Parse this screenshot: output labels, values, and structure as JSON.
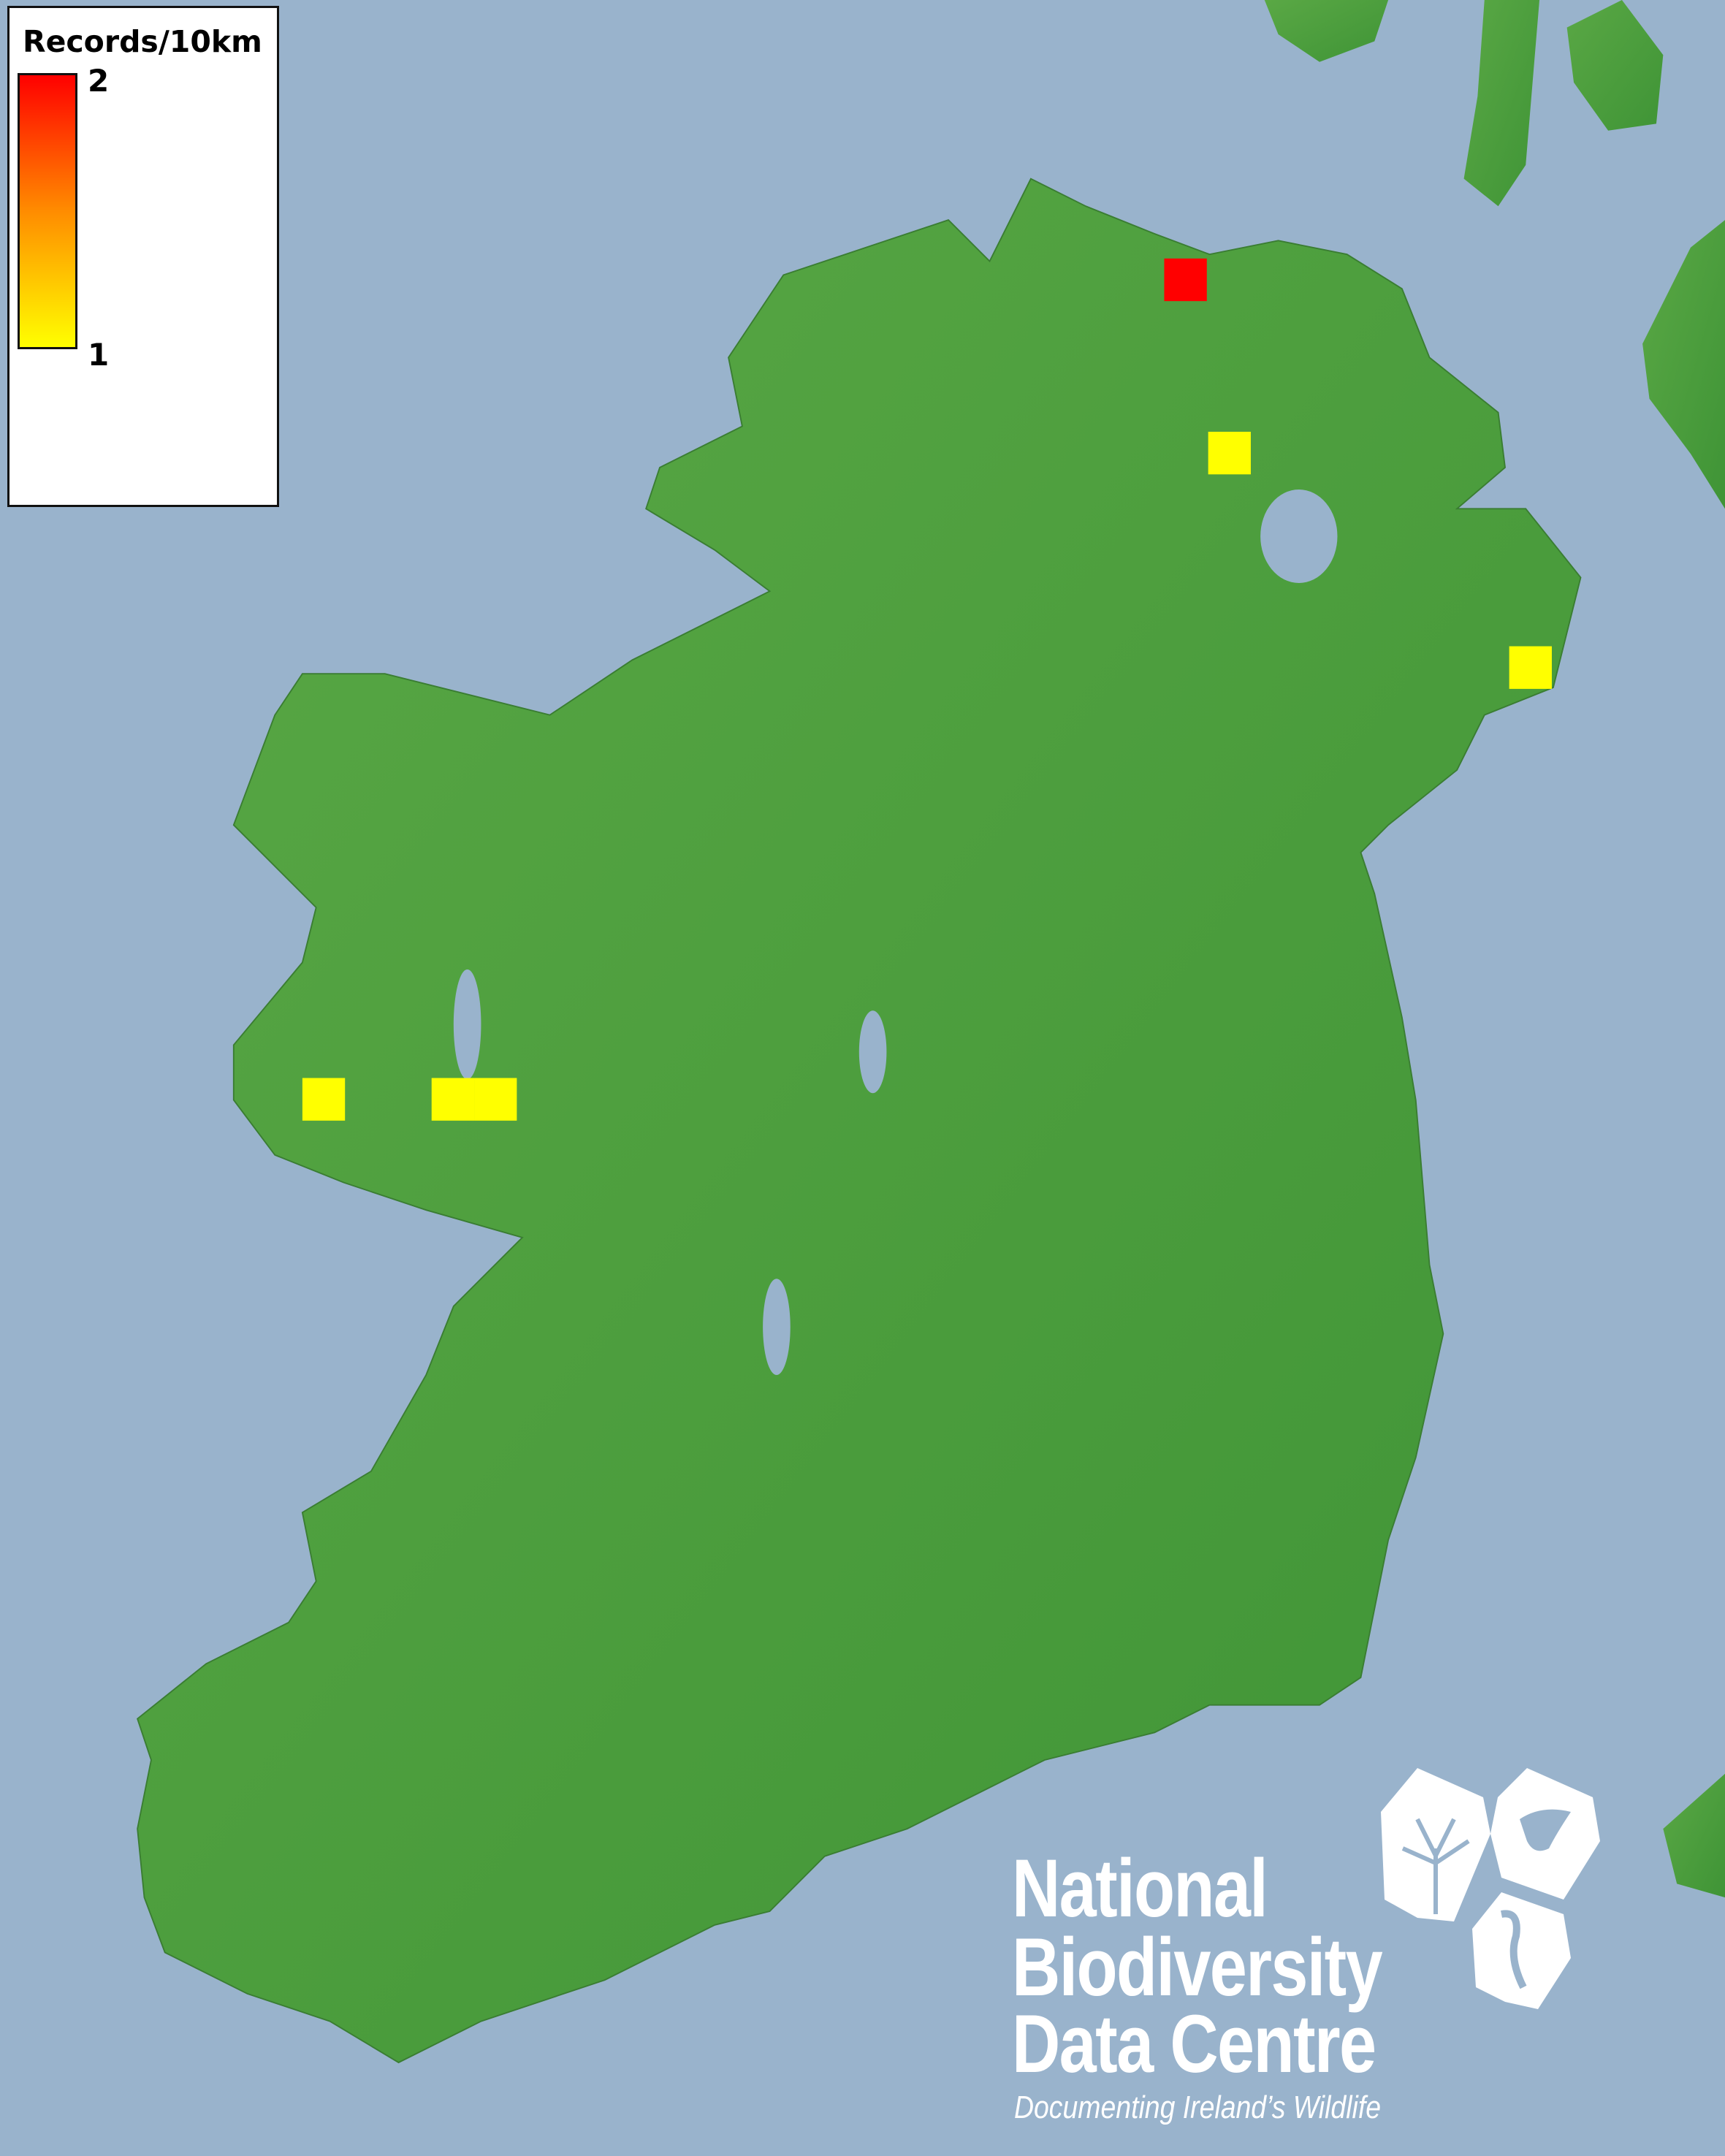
{
  "legend": {
    "title": "Records/10km",
    "max_label": "2",
    "min_label": "1",
    "color_max": "#ff0000",
    "color_min": "#ffff00"
  },
  "map": {
    "sea_color": "#99b3cc",
    "land_color": "#4c9e3c",
    "records": [
      {
        "value": 2
      },
      {
        "value": 1
      },
      {
        "value": 1
      },
      {
        "value": 1
      },
      {
        "value": 1
      },
      {
        "value": 1
      }
    ]
  },
  "logo": {
    "line1": "National",
    "line2": "Biodiversity",
    "line3": "Data Centre",
    "tagline": "Documenting Ireland’s Wildlife",
    "icons": [
      "plant-icon",
      "butterfly-icon",
      "seahorse-icon"
    ]
  }
}
